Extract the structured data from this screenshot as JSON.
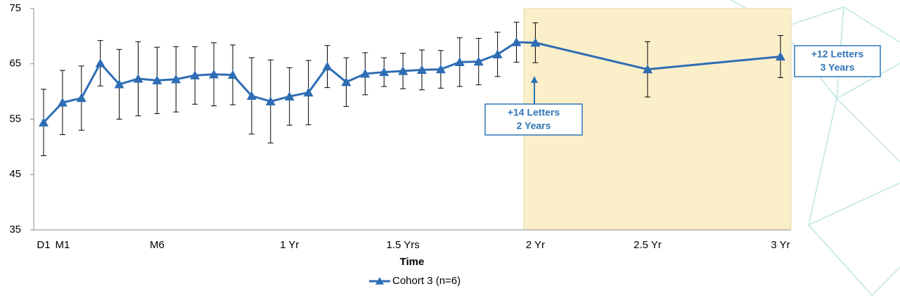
{
  "chart_data": {
    "type": "line",
    "x_label": "Time",
    "categories": [
      "D1",
      "M1",
      null,
      null,
      null,
      null,
      "M6",
      null,
      null,
      null,
      null,
      null,
      null,
      "1 Yr",
      null,
      null,
      null,
      null,
      null,
      "1.5 Yrs",
      null,
      null,
      null,
      null,
      null,
      null,
      "2 Yr",
      "2.5 Yr",
      "3 Yr"
    ],
    "series": [
      {
        "name": "Cohort 3 (n=6)",
        "color": "#2e6db4",
        "values": [
          54.4,
          58.0,
          58.8,
          65.1,
          61.3,
          62.3,
          62.0,
          62.2,
          62.9,
          63.1,
          63.0,
          59.2,
          58.2,
          59.1,
          59.8,
          64.5,
          61.7,
          63.2,
          63.5,
          63.7,
          63.9,
          64.0,
          65.3,
          65.4,
          66.7,
          68.9,
          68.8,
          64.0,
          66.3
        ],
        "errors": [
          6.0,
          5.8,
          5.8,
          4.1,
          6.3,
          6.7,
          6.0,
          5.9,
          5.2,
          5.7,
          5.4,
          6.9,
          7.5,
          5.2,
          5.8,
          3.8,
          4.4,
          3.8,
          2.6,
          3.2,
          3.6,
          3.4,
          4.4,
          4.2,
          4.0,
          3.6,
          3.6,
          5.0,
          3.8
        ]
      }
    ],
    "ylim": [
      35,
      75
    ],
    "yticks": [
      35,
      45,
      55,
      65,
      75
    ],
    "annotations": [
      {
        "lines": [
          "+14 Letters",
          "2 Years"
        ]
      },
      {
        "lines": [
          "+12 Letters",
          "3 Years"
        ]
      }
    ]
  }
}
